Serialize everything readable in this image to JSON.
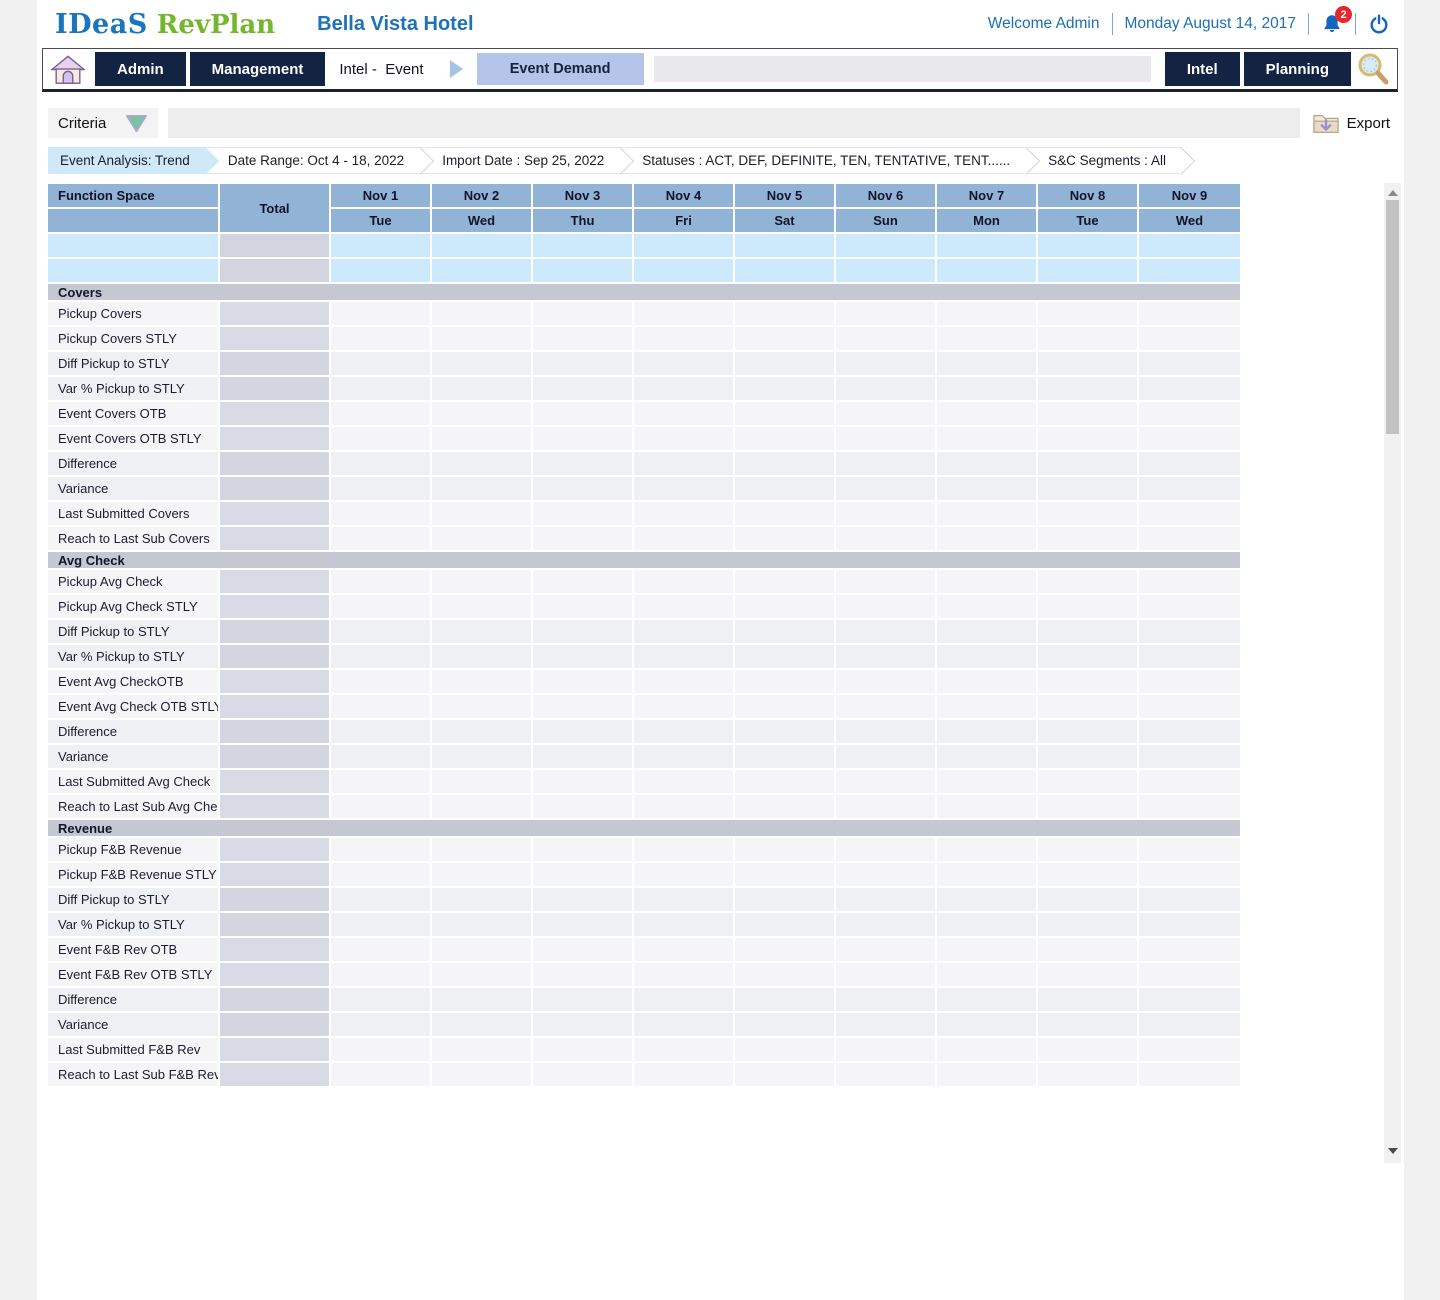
{
  "header": {
    "logo_ideas": "IDeaS",
    "logo_revplan": "RevPlan",
    "hotel_name": "Bella Vista Hotel",
    "welcome": "Welcome Admin",
    "date": "Monday August 14, 2017",
    "notification_count": "2"
  },
  "nav": {
    "admin_label": "Admin",
    "management_label": "Management",
    "breadcrumb": "Intel -  Event",
    "active_tab": "Event Demand",
    "intel_label": "Intel",
    "planning_label": "Planning"
  },
  "criteria": {
    "label": "Criteria",
    "export_label": "Export"
  },
  "filters": [
    {
      "label": "Event Analysis: Trend",
      "active": true
    },
    {
      "label": "Date Range: Oct 4 - 18, 2022",
      "active": false
    },
    {
      "label": "Import Date : Sep 25, 2022",
      "active": false
    },
    {
      "label": "Statuses : ACT, DEF, DEFINITE, TEN, TENTATIVE, TENT......",
      "active": false
    },
    {
      "label": "S&C Segments : All",
      "active": false
    }
  ],
  "table": {
    "corner_label": "Function Space",
    "total_label": "Total",
    "date_columns": [
      {
        "date": "Nov 1",
        "day": "Tue"
      },
      {
        "date": "Nov 2",
        "day": "Wed"
      },
      {
        "date": "Nov 3",
        "day": "Thu"
      },
      {
        "date": "Nov 4",
        "day": "Fri"
      },
      {
        "date": "Nov 5",
        "day": "Sat"
      },
      {
        "date": "Nov 6",
        "day": "Sun"
      },
      {
        "date": "Nov 7",
        "day": "Mon"
      },
      {
        "date": "Nov 8",
        "day": "Tue"
      },
      {
        "date": "Nov 9",
        "day": "Wed"
      }
    ],
    "unlabeled_row_count": 2,
    "sections": [
      {
        "title": "Covers",
        "rows": [
          "Pickup Covers",
          "Pickup Covers STLY",
          "Diff Pickup to STLY",
          "Var % Pickup to STLY",
          "Event Covers OTB",
          "Event Covers OTB STLY",
          "Difference",
          "Variance",
          "Last Submitted Covers",
          "Reach to Last Sub Covers"
        ]
      },
      {
        "title": "Avg Check",
        "rows": [
          "Pickup Avg Check",
          "Pickup Avg Check STLY",
          "Diff Pickup to STLY",
          "Var % Pickup to STLY",
          "Event Avg CheckOTB",
          "Event Avg Check OTB STLY",
          "Difference",
          "Variance",
          "Last Submitted Avg Check",
          "Reach to Last Sub Avg Check"
        ]
      },
      {
        "title": "Revenue",
        "rows": [
          "Pickup F&B Revenue",
          "Pickup F&B Revenue STLY",
          "Diff Pickup to STLY",
          "Var % Pickup to STLY",
          "Event F&B Rev OTB",
          "Event F&B Rev OTB STLY",
          "Difference",
          "Variance",
          "Last Submitted F&B Rev",
          "Reach to Last Sub F&B Rev"
        ]
      }
    ]
  },
  "icons": {
    "home": "home-icon",
    "bell": "notification-bell-icon",
    "power": "power-icon",
    "search": "search-magnifier-icon",
    "export": "export-folder-icon",
    "criteria_toggle": "criteria-collapse-triangle-icon",
    "breadcrumb_arrow": "breadcrumb-arrow-icon"
  },
  "colors": {
    "table_header_blue": "#90b3d6",
    "light_blue_row": "#cdeafc",
    "section_bar_gray": "#c5c8d2",
    "total_col_gray": "#d8dbe5",
    "navy_button": "#122442",
    "active_tab_periwinkle": "#b5c4e9",
    "active_chip_blue": "#cfe9f8",
    "link_blue": "#1c6fb4",
    "logo_green": "#74b72e",
    "badge_red": "#e8262b"
  }
}
